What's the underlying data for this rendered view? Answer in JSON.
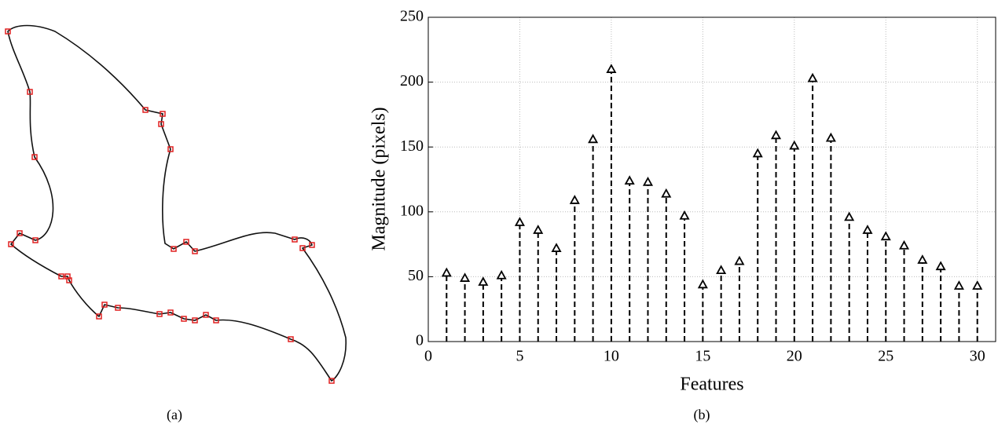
{
  "figure": {
    "captions": [
      "(a)",
      "(b)"
    ]
  },
  "chart_data": {
    "type": "stem",
    "xlabel": "Features",
    "ylabel": "Magnitude (pixels)",
    "x": [
      1,
      2,
      3,
      4,
      5,
      6,
      7,
      8,
      9,
      10,
      11,
      12,
      13,
      14,
      15,
      16,
      17,
      18,
      19,
      20,
      21,
      22,
      23,
      24,
      25,
      26,
      27,
      28,
      29,
      30
    ],
    "values": [
      53,
      49,
      46,
      51,
      92,
      86,
      72,
      109,
      156,
      210,
      124,
      123,
      114,
      97,
      44,
      55,
      62,
      145,
      159,
      151,
      203,
      157,
      96,
      86,
      81,
      74,
      63,
      58,
      43,
      43
    ],
    "color": "#000000",
    "xlim": [
      0,
      31
    ],
    "xticks": [
      0,
      5,
      10,
      15,
      20,
      25,
      30
    ],
    "ylim": [
      0,
      250
    ],
    "yticks": [
      0,
      50,
      100,
      150,
      200,
      250
    ],
    "grid": true
  }
}
